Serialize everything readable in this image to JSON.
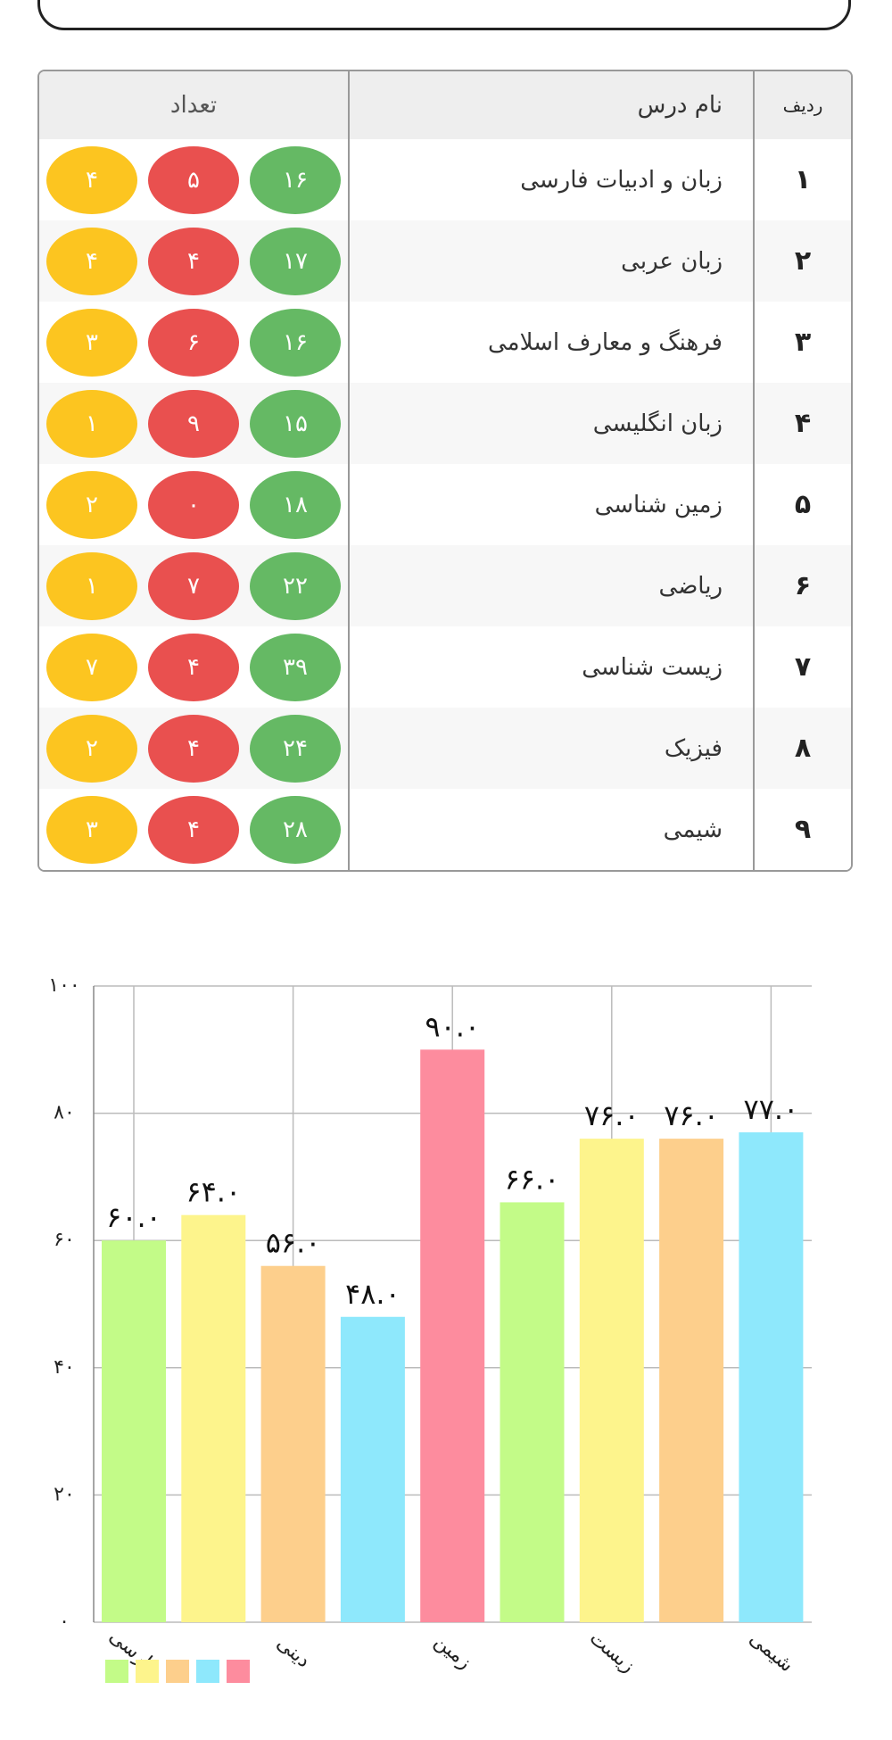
{
  "table": {
    "headers": [
      "ردیف",
      "نام درس",
      "تعداد"
    ],
    "rows": [
      [
        "۱",
        "زبان و ادبیات فارسی",
        "۱۶",
        "۵",
        "۴"
      ],
      [
        "۲",
        "زبان عربی",
        "۱۷",
        "۴",
        "۴"
      ],
      [
        "۳",
        "فرهنگ و معارف اسلامی",
        "۱۶",
        "۶",
        "۳"
      ],
      [
        "۴",
        "زبان انگلیسی",
        "۱۵",
        "۹",
        "۱"
      ],
      [
        "۵",
        "زمین شناسی",
        "۱۸",
        "۰",
        "۲"
      ],
      [
        "۶",
        "ریاضی",
        "۲۲",
        "۷",
        "۱"
      ],
      [
        "۷",
        "زیست شناسی",
        "۳۹",
        "۴",
        "۷"
      ],
      [
        "۸",
        "فیزیک",
        "۲۴",
        "۴",
        "۲"
      ],
      [
        "۹",
        "شیمی",
        "۲۸",
        "۴",
        "۳"
      ]
    ]
  },
  "chart_data": {
    "type": "bar",
    "categories": [
      "فارسی",
      null,
      "دینی",
      null,
      "زمین",
      null,
      "زیست",
      null,
      "شیمی"
    ],
    "values": [
      60,
      64,
      56,
      48,
      90,
      66,
      76,
      76,
      77
    ],
    "value_labels": [
      "۶۰.۰",
      "۶۴.۰",
      "۵۶.۰",
      "۴۸.۰",
      "۹۰.۰",
      "۶۶.۰",
      "۷۶.۰",
      "۷۶.۰",
      "۷۷.۰"
    ],
    "colors": [
      "#c3fb88",
      "#fdf48c",
      "#fdcf8c",
      "#8ee8fc",
      "#fd8c9e",
      "#c3fb88",
      "#fdf48c",
      "#fdcf8c",
      "#8ee8fc"
    ],
    "ylim": [
      0,
      100
    ],
    "yticks": [
      {
        "value": 0,
        "label": "۰"
      },
      {
        "value": 20,
        "label": "۲۰"
      },
      {
        "value": 40,
        "label": "۴۰"
      },
      {
        "value": 60,
        "label": "۶۰"
      },
      {
        "value": 80,
        "label": "۸۰"
      },
      {
        "value": 100,
        "label": "۱۰۰"
      }
    ],
    "grid": true
  }
}
